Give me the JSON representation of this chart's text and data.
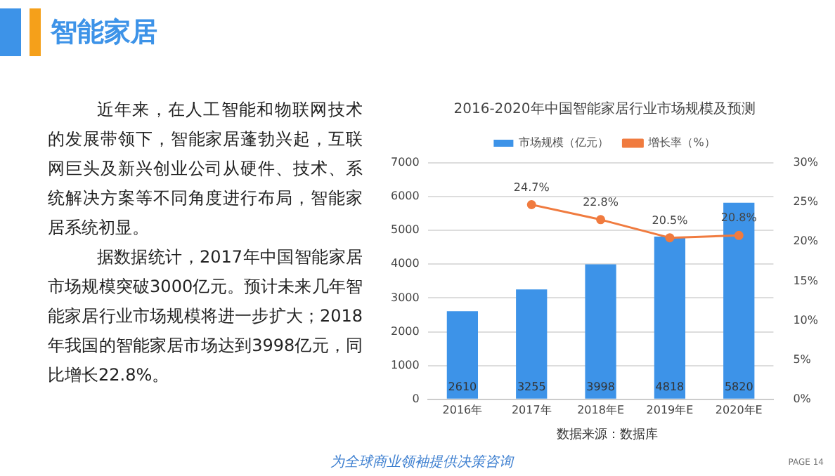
{
  "chart_data": {
    "type": "bar",
    "title": "2016-2020年中国智能家居行业市场规模及预测",
    "categories": [
      "2016年",
      "2017年",
      "2018年E",
      "2019年E",
      "2020年E"
    ],
    "series": [
      {
        "name": "市场规模（亿元）",
        "color": "#3d93e8",
        "values": [
          2610,
          3255,
          3998,
          4818,
          5820
        ],
        "value_labels": [
          "2610",
          "3255",
          "3998",
          "4818",
          "5820"
        ]
      },
      {
        "name": "增长率（%）",
        "type": "line",
        "axis": "y2",
        "color": "#f07b3f",
        "values": [
          null,
          24.7,
          22.8,
          20.5,
          20.8
        ],
        "value_labels": [
          null,
          "24.7%",
          "22.8%",
          "20.5%",
          "20.8%"
        ]
      }
    ],
    "ylim": [
      0,
      7000
    ],
    "yticks": [
      0,
      1000,
      2000,
      3000,
      4000,
      5000,
      6000,
      7000
    ],
    "y2lim": [
      0,
      30
    ],
    "y2ticks": [
      {
        "value": 0,
        "label": "0%"
      },
      {
        "value": 5,
        "label": "5%"
      },
      {
        "value": 10,
        "label": "10%"
      },
      {
        "value": 15,
        "label": "15%"
      },
      {
        "value": 20,
        "label": "20%"
      },
      {
        "value": 25,
        "label": "25%"
      },
      {
        "value": 30,
        "label": "30%"
      }
    ],
    "grid": "y",
    "legend": "top",
    "marker": "circle",
    "line_style": "solid",
    "annotations": [
      "智能家居",
      "近年来，在人工智能和物联网技术的发展带领下，智能家居蓬勃兴起，互联网巨头及新兴创业公司从硬件、技术、系统解决方案等不同角度进行布局，智能家居系统初显。",
      "据数据统计，2017年中国智能家居市场规模突破3000亿元。预计未来几年智能家居行业市场规模将进一步扩大；2018年我国的智能家居市场达到3998亿元，同比增长22.8%。",
      "数据来源：数据库",
      "为全球商业领袖提供决策咨询",
      "PAGE 14"
    ]
  }
}
